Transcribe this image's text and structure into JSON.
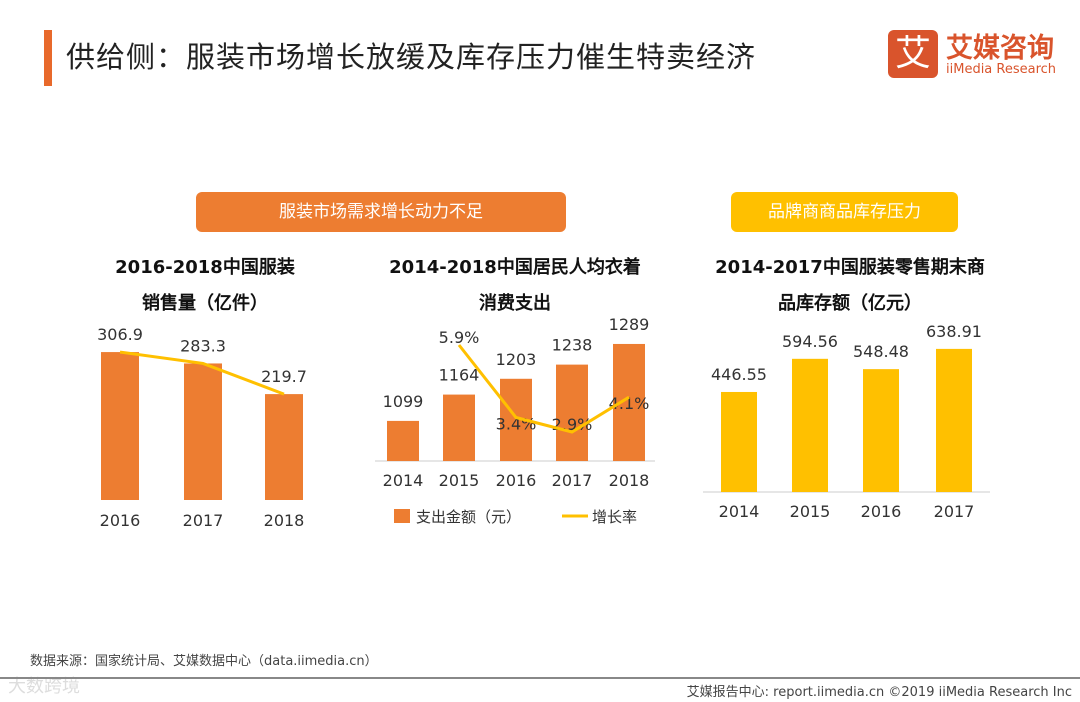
{
  "title": "供给侧：服装市场增长放缓及库存压力催生特卖经济",
  "logo": {
    "mark": "艾",
    "cn": "艾媒咨询",
    "en": "iiMedia Research"
  },
  "banners": [
    "服装市场需求增长动力不足",
    "品牌商商品库存压力"
  ],
  "source": "数据来源：国家统计局、艾媒数据中心（data.iimedia.cn）",
  "footer": "艾媒报告中心: report.iimedia.cn  ©2019  iiMedia Research Inc",
  "watermark": "大数跨境",
  "colors": {
    "orange": "#ed7d31",
    "yellow": "#ffc000",
    "line": "#ffc000"
  },
  "chart_data": [
    {
      "type": "bar",
      "title_lines": [
        "2016-2018中国服装",
        "销售量（亿件）"
      ],
      "categories": [
        "2016",
        "2017",
        "2018"
      ],
      "values": [
        306.9,
        283.3,
        219.7
      ],
      "line_through_bars": true,
      "ylim": [
        0,
        330
      ]
    },
    {
      "type": "bar+line",
      "title_lines": [
        "2014-2018中国居民人均衣着",
        "消费支出"
      ],
      "categories": [
        "2014",
        "2015",
        "2016",
        "2017",
        "2018"
      ],
      "series": [
        {
          "name": "支出金额（元）",
          "values": [
            1099,
            1164,
            1203,
            1238,
            1289
          ]
        },
        {
          "name": "增长率",
          "values": [
            null,
            5.9,
            3.4,
            2.9,
            4.1
          ],
          "labels": [
            "",
            "5.9%",
            "3.4%",
            "2.9%",
            "4.1%"
          ]
        }
      ],
      "ylim": [
        1000,
        1300
      ],
      "legend": "bottom"
    },
    {
      "type": "bar",
      "title_lines": [
        "2014-2017中国服装零售期末商",
        "品库存额（亿元）"
      ],
      "categories": [
        "2014",
        "2015",
        "2016",
        "2017"
      ],
      "values": [
        446.55,
        594.56,
        548.48,
        638.91
      ],
      "ylim": [
        0,
        700
      ]
    }
  ]
}
